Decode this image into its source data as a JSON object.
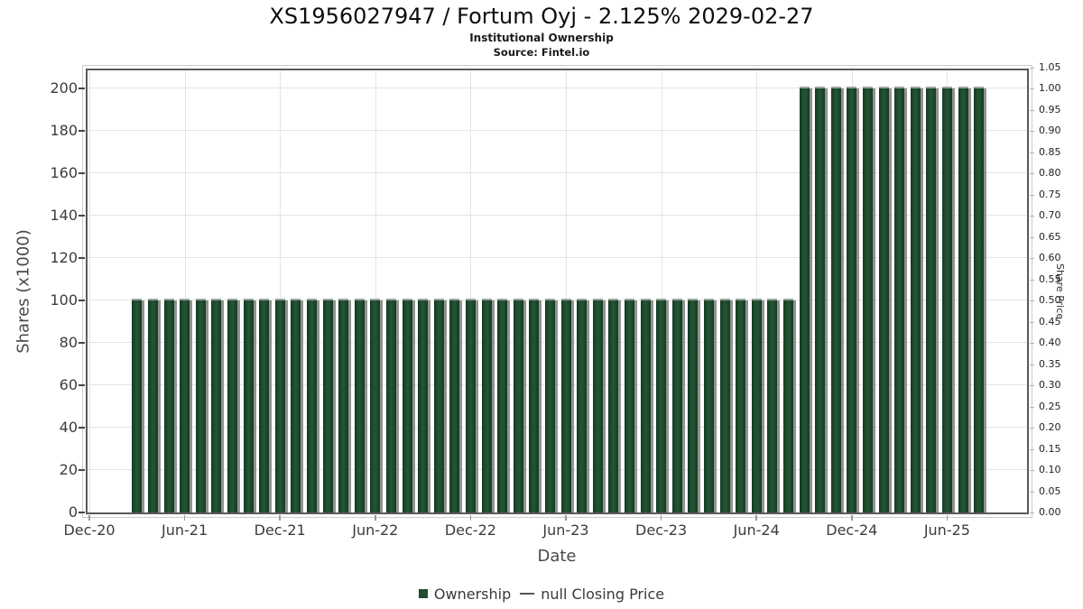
{
  "header": {
    "title": "XS1956027947 / Fortum Oyj - 2.125% 2029-02-27",
    "subtitle": "Institutional Ownership",
    "source": "Source: Fintel.io"
  },
  "chart_data": {
    "type": "bar",
    "title": "XS1956027947 / Fortum Oyj - 2.125% 2029-02-27",
    "subtitle": "Institutional Ownership",
    "source": "Source: Fintel.io",
    "xlabel": "Date",
    "ylabel_left": "Shares (x1000)",
    "ylabel_right": "Share Price",
    "grid": true,
    "x_axis": {
      "start_month": "Dec-20",
      "tick_step_months": 6,
      "tick_labels": [
        "Dec-20",
        "Jun-21",
        "Dec-21",
        "Jun-22",
        "Dec-22",
        "Jun-23",
        "Dec-23",
        "Jun-24",
        "Dec-24",
        "Jun-25"
      ]
    },
    "y_left": {
      "label": "Shares (x1000)",
      "ticks": [
        0,
        20,
        40,
        60,
        80,
        100,
        120,
        140,
        160,
        180,
        200
      ],
      "range": [
        0,
        210
      ]
    },
    "y_right": {
      "label": "Share Price",
      "ticks": [
        "0.00",
        "0.05",
        "0.10",
        "0.15",
        "0.20",
        "0.25",
        "0.30",
        "0.35",
        "0.40",
        "0.45",
        "0.50",
        "0.55",
        "0.60",
        "0.65",
        "0.70",
        "0.75",
        "0.80",
        "0.85",
        "0.90",
        "0.95",
        "1.00",
        "1.05"
      ],
      "range": [
        0,
        1.05
      ]
    },
    "bars": {
      "series_name": "Ownership",
      "start_offset_months": 3,
      "months": [
        "Mar-21",
        "Apr-21",
        "May-21",
        "Jun-21",
        "Jul-21",
        "Aug-21",
        "Sep-21",
        "Oct-21",
        "Nov-21",
        "Dec-21",
        "Jan-22",
        "Feb-22",
        "Mar-22",
        "Apr-22",
        "May-22",
        "Jun-22",
        "Jul-22",
        "Aug-22",
        "Sep-22",
        "Oct-22",
        "Nov-22",
        "Dec-22",
        "Jan-23",
        "Feb-23",
        "Mar-23",
        "Apr-23",
        "May-23",
        "Jun-23",
        "Jul-23",
        "Aug-23",
        "Sep-23",
        "Oct-23",
        "Nov-23",
        "Dec-23",
        "Jan-24",
        "Feb-24",
        "Mar-24",
        "Apr-24",
        "May-24",
        "Jun-24",
        "Jul-24",
        "Aug-24",
        "Sep-24",
        "Oct-24",
        "Nov-24",
        "Dec-24",
        "Jan-25",
        "Feb-25",
        "Mar-25",
        "Apr-25",
        "May-25",
        "Jun-25",
        "Jul-25",
        "Aug-25"
      ],
      "values": [
        100,
        100,
        100,
        100,
        100,
        100,
        100,
        100,
        100,
        100,
        100,
        100,
        100,
        100,
        100,
        100,
        100,
        100,
        100,
        100,
        100,
        100,
        100,
        100,
        100,
        100,
        100,
        100,
        100,
        100,
        100,
        100,
        100,
        100,
        100,
        100,
        100,
        100,
        100,
        100,
        100,
        100,
        200,
        200,
        200,
        200,
        200,
        200,
        200,
        200,
        200,
        200,
        200,
        200
      ]
    },
    "series": [
      {
        "name": "Ownership",
        "type": "bar",
        "color": "#1e4c2d"
      },
      {
        "name": "null Closing Price",
        "type": "line",
        "color": "#555555",
        "values": null
      }
    ],
    "legend": {
      "position": "bottom",
      "items": [
        {
          "label": "Ownership",
          "marker": "square",
          "color": "#1e4c2d"
        },
        {
          "label": "null Closing Price",
          "marker": "dash",
          "color": "#555555"
        }
      ]
    },
    "colors": {
      "bar": "#1e4c2d",
      "bar_shadow": "#9f9f9f",
      "gridline": "#e4e4e4",
      "plot_border": "#5a5a5a",
      "tick_label": "#3c3c3c"
    }
  }
}
